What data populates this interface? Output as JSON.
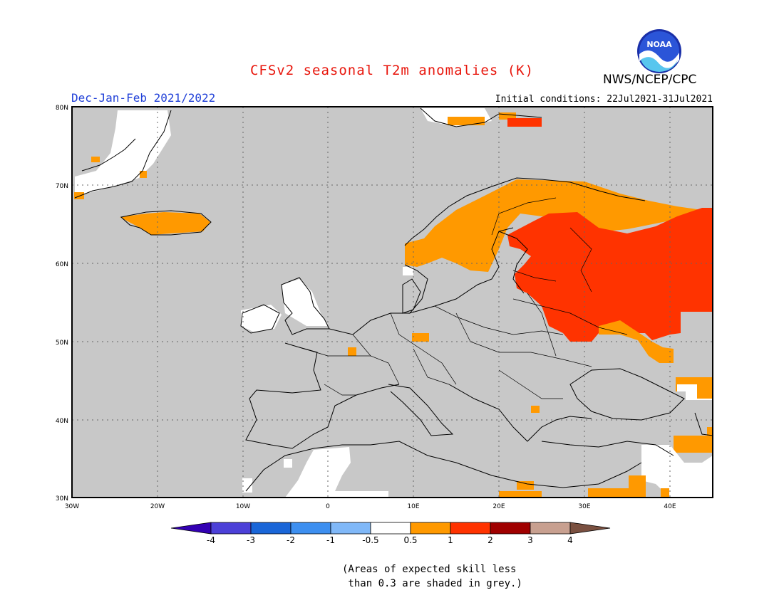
{
  "header": {
    "title": "CFSv2 seasonal T2m anomalies (K)",
    "season": "Dec-Jan-Feb 2021/2022",
    "initial_conditions": "Initial conditions: 22Jul2021-31Jul2021",
    "agency": "NWS/NCEP/CPC",
    "logo_text": "NOAA"
  },
  "map": {
    "lon_range": [
      -30,
      45
    ],
    "lat_range": [
      30,
      80
    ],
    "lat_ticks": [
      "30N",
      "40N",
      "50N",
      "60N",
      "70N",
      "80N"
    ],
    "lon_ticks": [
      "30W",
      "20W",
      "10W",
      "0",
      "10E",
      "20E",
      "30E",
      "40E"
    ],
    "background_color": "#c8c8c8",
    "shading": [
      {
        "region": "western Russia / Baltics / Belarus / north Ukraine",
        "category": "1 to 2",
        "color": "#ff3300"
      },
      {
        "region": "Fennoscandia / northern Russia",
        "category": "0.5 to 1",
        "color": "#ff9900"
      },
      {
        "region": "Iceland",
        "category": "0.5 to 1",
        "color": "#ff9900"
      },
      {
        "region": "Black Sea coast / Turkey",
        "category": "0.5 to 1",
        "color": "#ff9900"
      },
      {
        "region": "North Africa / Sahara",
        "category": "-0.5 to 0.5",
        "color": "#ffffff"
      },
      {
        "region": "Greenland coast",
        "category": "-0.5 to 0.5",
        "color": "#ffffff"
      }
    ]
  },
  "colorbar": {
    "labels": [
      "-4",
      "-3",
      "-2",
      "-1",
      "-0.5",
      "0.5",
      "1",
      "2",
      "3",
      "4"
    ],
    "colors": [
      "#3300b3",
      "#4c40d8",
      "#1a66d8",
      "#3d8ff0",
      "#80b8f8",
      "#ffffff",
      "#ff9900",
      "#ff3300",
      "#a00000",
      "#c8a090",
      "#7a5040"
    ]
  },
  "footnote": "(Areas of expected skill less\n than 0.3 are shaded in grey.)"
}
